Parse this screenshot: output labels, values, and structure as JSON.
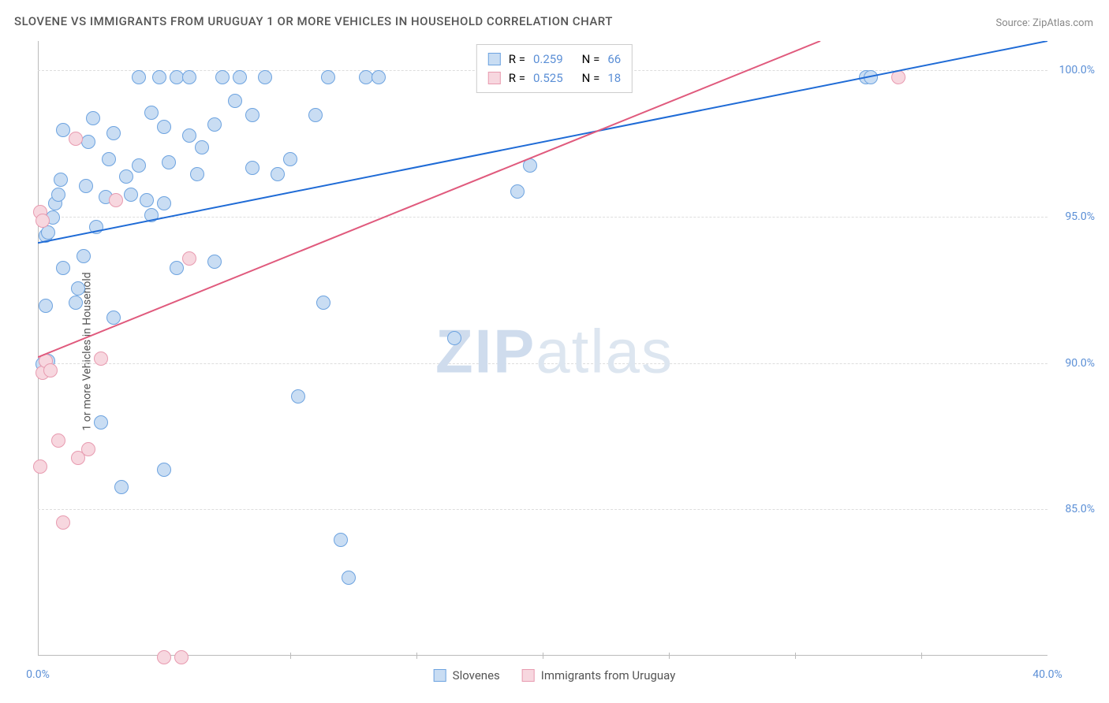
{
  "title": "SLOVENE VS IMMIGRANTS FROM URUGUAY 1 OR MORE VEHICLES IN HOUSEHOLD CORRELATION CHART",
  "source_label": "Source: ZipAtlas.com",
  "y_axis_label": "1 or more Vehicles in Household",
  "watermark": {
    "part1": "ZIP",
    "part2": "atlas"
  },
  "chart": {
    "type": "scatter",
    "background_color": "#ffffff",
    "grid_color": "#dddddd",
    "axis_color": "#bbbbbb",
    "tick_color": "#5b8fd6",
    "xlim": [
      0,
      40
    ],
    "ylim": [
      80,
      101
    ],
    "x_ticks": [
      0,
      40
    ],
    "x_tick_labels": [
      "0.0%",
      "40.0%"
    ],
    "x_minor_ticks": [
      5,
      10,
      15,
      20,
      25,
      30,
      35
    ],
    "y_ticks": [
      85,
      90,
      95,
      100
    ],
    "y_tick_labels": [
      "85.0%",
      "90.0%",
      "95.0%",
      "100.0%"
    ],
    "point_radius": 9,
    "point_stroke_width": 1.5,
    "trend_line_width": 2,
    "series": [
      {
        "key": "slovenes",
        "label": "Slovenes",
        "fill_color": "#c9ddf3",
        "stroke_color": "#6da3e0",
        "line_color": "#1f6bd6",
        "R": "0.259",
        "N": "66",
        "trend": {
          "x1": 0,
          "y1": 94.1,
          "x2": 40,
          "y2": 101.0
        },
        "points": [
          [
            0.2,
            90.2
          ],
          [
            0.3,
            90.3
          ],
          [
            0.4,
            90.3
          ],
          [
            0.3,
            92.2
          ],
          [
            0.3,
            94.6
          ],
          [
            0.4,
            94.7
          ],
          [
            0.6,
            95.2
          ],
          [
            0.7,
            95.7
          ],
          [
            0.8,
            96.0
          ],
          [
            0.9,
            96.5
          ],
          [
            1.0,
            98.2
          ],
          [
            1.0,
            93.5
          ],
          [
            1.5,
            92.3
          ],
          [
            1.6,
            92.8
          ],
          [
            1.8,
            93.9
          ],
          [
            1.9,
            96.3
          ],
          [
            2.0,
            97.8
          ],
          [
            2.2,
            98.6
          ],
          [
            2.3,
            94.9
          ],
          [
            2.5,
            88.2
          ],
          [
            2.7,
            95.9
          ],
          [
            2.8,
            97.2
          ],
          [
            3.0,
            98.1
          ],
          [
            3.0,
            91.8
          ],
          [
            3.3,
            86.0
          ],
          [
            3.5,
            96.6
          ],
          [
            3.7,
            96.0
          ],
          [
            4.0,
            97.0
          ],
          [
            4.0,
            100.0
          ],
          [
            4.3,
            95.8
          ],
          [
            4.5,
            98.8
          ],
          [
            4.5,
            95.3
          ],
          [
            4.8,
            100.0
          ],
          [
            5.0,
            98.3
          ],
          [
            5.0,
            95.7
          ],
          [
            5.2,
            97.1
          ],
          [
            5.5,
            100.0
          ],
          [
            5.5,
            93.5
          ],
          [
            6.0,
            100.0
          ],
          [
            6.0,
            98.0
          ],
          [
            6.3,
            96.7
          ],
          [
            6.5,
            97.6
          ],
          [
            7.0,
            98.4
          ],
          [
            7.0,
            93.7
          ],
          [
            7.3,
            100.0
          ],
          [
            7.8,
            99.2
          ],
          [
            8.0,
            100.0
          ],
          [
            8.5,
            96.9
          ],
          [
            8.5,
            98.7
          ],
          [
            9.0,
            100.0
          ],
          [
            9.5,
            96.7
          ],
          [
            10.0,
            97.2
          ],
          [
            10.3,
            89.1
          ],
          [
            11.0,
            98.7
          ],
          [
            11.3,
            92.3
          ],
          [
            11.5,
            100.0
          ],
          [
            12.0,
            84.2
          ],
          [
            12.3,
            82.9
          ],
          [
            13.0,
            100.0
          ],
          [
            13.5,
            100.0
          ],
          [
            16.5,
            91.1
          ],
          [
            19.0,
            96.1
          ],
          [
            19.5,
            97.0
          ],
          [
            32.8,
            100.0
          ],
          [
            33.0,
            100.0
          ],
          [
            5.0,
            86.6
          ]
        ]
      },
      {
        "key": "uruguay",
        "label": "Immigrants from Uruguay",
        "fill_color": "#f7d7df",
        "stroke_color": "#e89bb0",
        "line_color": "#e05a7d",
        "R": "0.525",
        "N": "18",
        "trend": {
          "x1": 0,
          "y1": 90.2,
          "x2": 31,
          "y2": 101.0
        },
        "points": [
          [
            0.1,
            86.7
          ],
          [
            0.1,
            95.4
          ],
          [
            0.2,
            89.9
          ],
          [
            0.3,
            90.3
          ],
          [
            0.5,
            90.0
          ],
          [
            0.8,
            87.6
          ],
          [
            1.0,
            84.8
          ],
          [
            1.5,
            97.9
          ],
          [
            1.6,
            87.0
          ],
          [
            2.0,
            87.3
          ],
          [
            2.5,
            90.4
          ],
          [
            3.1,
            95.8
          ],
          [
            5.0,
            80.2
          ],
          [
            5.7,
            80.2
          ],
          [
            6.0,
            93.8
          ],
          [
            18.8,
            100.0
          ],
          [
            34.1,
            100.0
          ],
          [
            0.2,
            95.1
          ]
        ]
      }
    ]
  }
}
